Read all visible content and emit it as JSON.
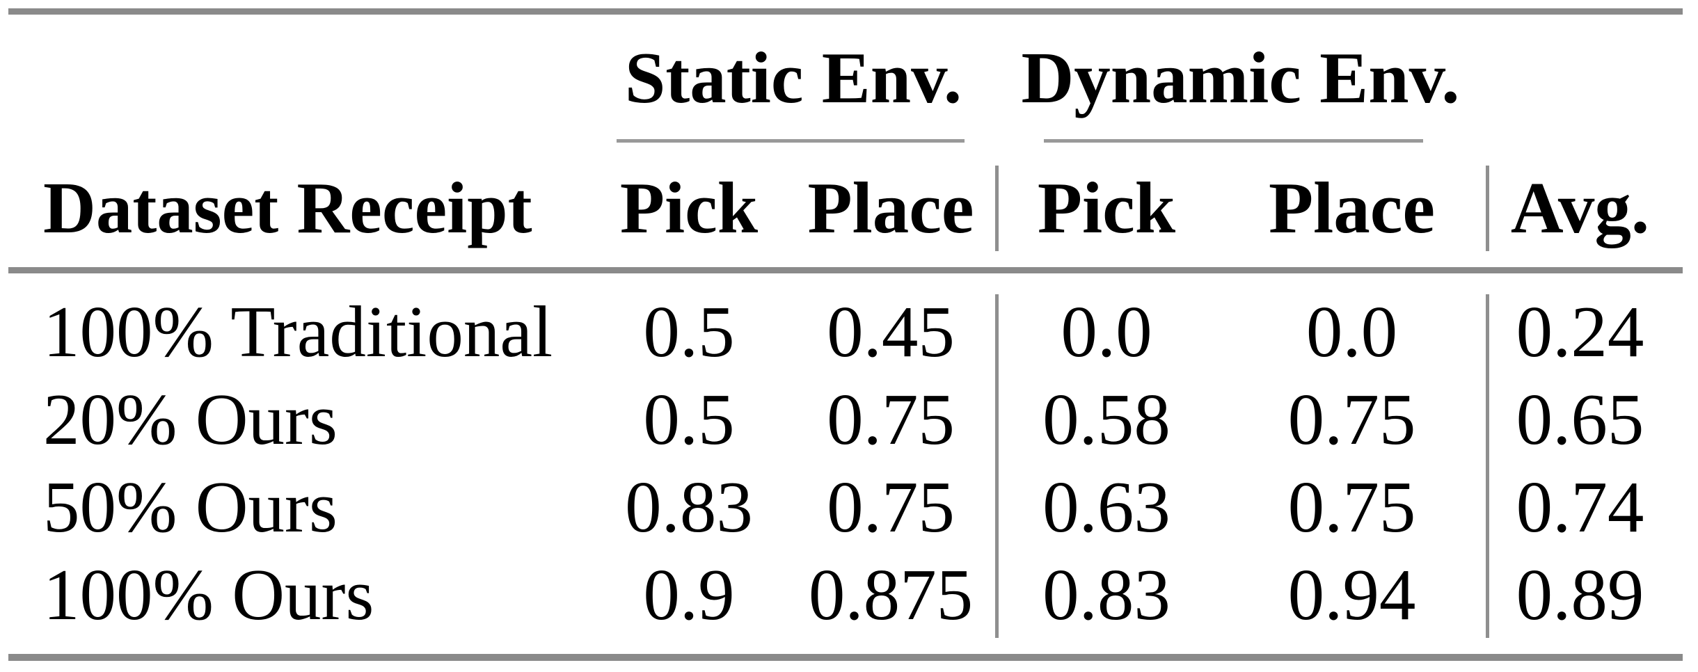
{
  "table": {
    "corner_header": "Dataset Receipt",
    "groups": [
      {
        "label": "Static Env.",
        "subcolumns": [
          "Pick",
          "Place"
        ]
      },
      {
        "label": "Dynamic Env.",
        "subcolumns": [
          "Pick",
          "Place"
        ]
      }
    ],
    "avg_header": "Avg.",
    "rows": [
      {
        "label": "100% Traditional",
        "values": [
          "0.5",
          "0.45",
          "0.0",
          "0.0",
          "0.24"
        ]
      },
      {
        "label": "20% Ours",
        "values": [
          "0.5",
          "0.75",
          "0.58",
          "0.75",
          "0.65"
        ]
      },
      {
        "label": "50% Ours",
        "values": [
          "0.83",
          "0.75",
          "0.63",
          "0.75",
          "0.74"
        ]
      },
      {
        "label": "100% Ours",
        "values": [
          "0.9",
          "0.875",
          "0.83",
          "0.94",
          "0.89"
        ]
      }
    ]
  },
  "chart_data": {
    "type": "table",
    "column_groups": [
      "Static Env.",
      "Dynamic Env."
    ],
    "columns": [
      "Dataset Receipt",
      "Static Pick",
      "Static Place",
      "Dynamic Pick",
      "Dynamic Place",
      "Avg."
    ],
    "rows": [
      [
        "100% Traditional",
        0.5,
        0.45,
        0.0,
        0.0,
        0.24
      ],
      [
        "20% Ours",
        0.5,
        0.75,
        0.58,
        0.75,
        0.65
      ],
      [
        "50% Ours",
        0.83,
        0.75,
        0.63,
        0.75,
        0.74
      ],
      [
        "100% Ours",
        0.9,
        0.875,
        0.83,
        0.94,
        0.89
      ]
    ]
  },
  "colors": {
    "thick_rule": "#8a8a8a",
    "cmidrule": "#999999",
    "vertical_separator": "#8f8f8f",
    "text": "#000000",
    "background": "#ffffff"
  }
}
